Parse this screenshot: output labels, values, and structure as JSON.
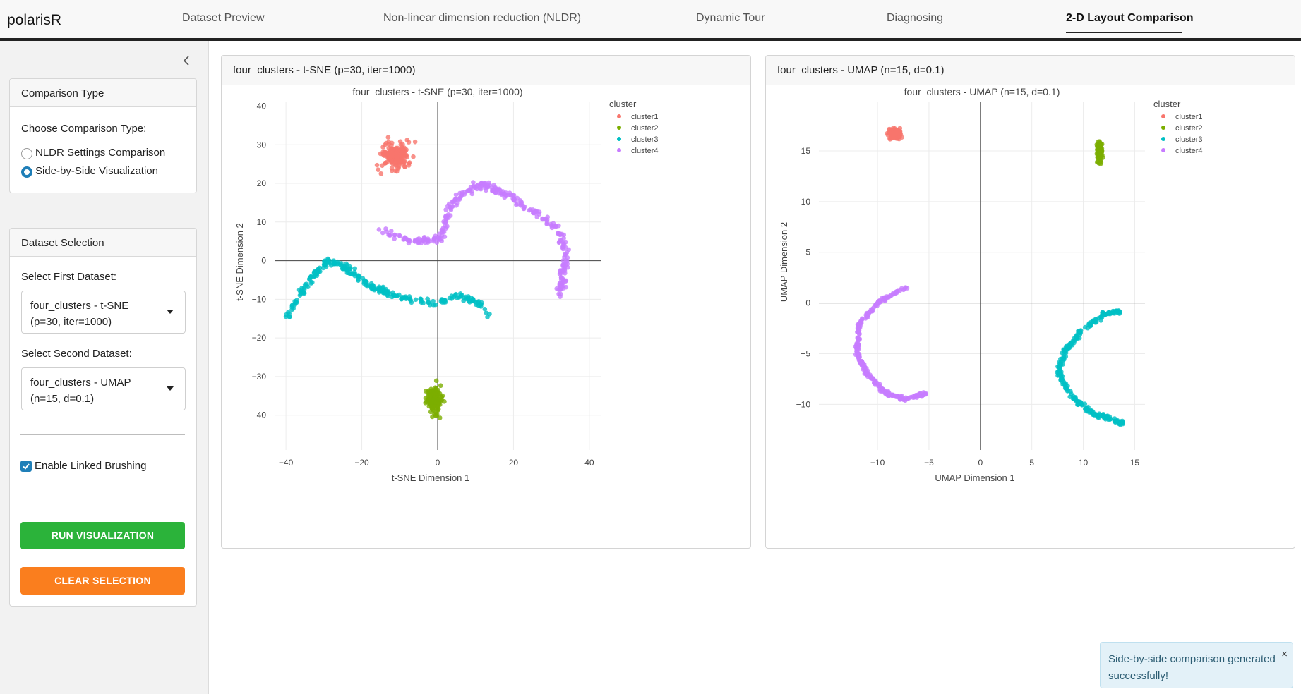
{
  "nav": {
    "brand": "polarisR",
    "tabs": [
      {
        "label": "Dataset Preview",
        "active": false
      },
      {
        "label": "Non-linear dimension reduction (NLDR)",
        "active": false
      },
      {
        "label": "Dynamic Tour",
        "active": false
      },
      {
        "label": "Diagnosing",
        "active": false
      },
      {
        "label": "2-D Layout Comparison",
        "active": true
      }
    ]
  },
  "sidebar": {
    "comparison_type": {
      "title": "Comparison Type",
      "prompt": "Choose Comparison Type:",
      "options": [
        {
          "label": "NLDR Settings Comparison",
          "selected": false
        },
        {
          "label": "Side-by-Side Visualization",
          "selected": true
        }
      ]
    },
    "dataset_selection": {
      "title": "Dataset Selection",
      "first_label": "Select First Dataset:",
      "first_value": "four_clusters - t-SNE (p=30, iter=1000)",
      "second_label": "Select Second Dataset:",
      "second_value": "four_clusters - UMAP (n=15, d=0.1)",
      "linked_brushing_label": "Enable Linked Brushing",
      "linked_brushing_checked": true,
      "run_button": "RUN VISUALIZATION",
      "clear_button": "CLEAR SELECTION"
    }
  },
  "colors": {
    "cluster1": "#f8766d",
    "cluster2": "#7cae00",
    "cluster3": "#00bfc4",
    "cluster4": "#c77cff",
    "run_button": "#2bb33a",
    "clear_button": "#fa7e1e",
    "accent": "#1f7fb8"
  },
  "chart_data": [
    {
      "type": "scatter",
      "card_title": "four_clusters - t-SNE (p=30, iter=1000)",
      "title": "four_clusters - t-SNE (p=30, iter=1000)",
      "xlabel": "t-SNE Dimension 1",
      "ylabel": "t-SNE Dimension 2",
      "xlim": [
        -43,
        43
      ],
      "ylim": [
        -49,
        41
      ],
      "xticks": [
        -40,
        -20,
        0,
        20,
        40
      ],
      "yticks": [
        -40,
        -30,
        -20,
        -10,
        0,
        10,
        20,
        30,
        40
      ],
      "legend_title": "cluster",
      "legend_position": "top-right",
      "series": [
        {
          "name": "cluster1",
          "shape": "blob",
          "center": [
            -11,
            27
          ],
          "spread": [
            6,
            6
          ],
          "n": 180
        },
        {
          "name": "cluster2",
          "shape": "blob",
          "center": [
            -1,
            -36
          ],
          "spread": [
            3.5,
            6
          ],
          "n": 130
        },
        {
          "name": "cluster3",
          "shape": "curve",
          "path": [
            [
              -40,
              -15
            ],
            [
              -36,
              -8
            ],
            [
              -32,
              -3
            ],
            [
              -29,
              0
            ],
            [
              -24,
              -2
            ],
            [
              -19,
              -6
            ],
            [
              -14,
              -8
            ],
            [
              -8,
              -10
            ],
            [
              0,
              -11
            ],
            [
              6,
              -9
            ],
            [
              11,
              -11
            ],
            [
              14,
              -14
            ]
          ],
          "width": 1.4,
          "n": 260
        },
        {
          "name": "cluster4",
          "shape": "curve",
          "path": [
            [
              -16,
              8
            ],
            [
              -6,
              5
            ],
            [
              1,
              6
            ],
            [
              3,
              13
            ],
            [
              6,
              17
            ],
            [
              12,
              20
            ],
            [
              18,
              17
            ],
            [
              25,
              13
            ],
            [
              32,
              8
            ],
            [
              34,
              2
            ],
            [
              33,
              -5
            ],
            [
              32,
              -9
            ]
          ],
          "width": 1.6,
          "n": 300
        }
      ]
    },
    {
      "type": "scatter",
      "card_title": "four_clusters - UMAP (n=15, d=0.1)",
      "title": "four_clusters - UMAP (n=15, d=0.1)",
      "xlabel": "UMAP Dimension 1",
      "ylabel": "UMAP Dimension 2",
      "xlim": [
        -15.7,
        16
      ],
      "ylim": [
        -14.5,
        19.8
      ],
      "xticks": [
        -10,
        -5,
        0,
        5,
        10,
        15
      ],
      "yticks": [
        -10,
        -5,
        0,
        5,
        10,
        15
      ],
      "legend_title": "cluster",
      "legend_position": "top-right",
      "series": [
        {
          "name": "cluster1",
          "shape": "blob",
          "center": [
            -8.3,
            16.7
          ],
          "spread": [
            0.9,
            0.8
          ],
          "n": 160
        },
        {
          "name": "cluster2",
          "shape": "blob",
          "center": [
            11.6,
            14.9
          ],
          "spread": [
            0.5,
            1.5
          ],
          "n": 110
        },
        {
          "name": "cluster3",
          "shape": "curve",
          "path": [
            [
              13.6,
              -0.8
            ],
            [
              12,
              -1.1
            ],
            [
              9.8,
              -2.8
            ],
            [
              8.1,
              -5
            ],
            [
              7.6,
              -7
            ],
            [
              9,
              -9.4
            ],
            [
              11,
              -10.9
            ],
            [
              12.6,
              -11.4
            ],
            [
              13.9,
              -11.9
            ]
          ],
          "width": 0.35,
          "n": 260
        },
        {
          "name": "cluster4",
          "shape": "curve",
          "path": [
            [
              -7.2,
              1.5
            ],
            [
              -9.9,
              0.1
            ],
            [
              -11.8,
              -2.1
            ],
            [
              -12,
              -5
            ],
            [
              -11,
              -7
            ],
            [
              -9.3,
              -8.8
            ],
            [
              -7.5,
              -9.5
            ],
            [
              -5.1,
              -8.9
            ]
          ],
          "width": 0.3,
          "n": 280
        }
      ]
    }
  ],
  "toast": {
    "message": "Side-by-side comparison generated successfully!",
    "close": "×"
  }
}
